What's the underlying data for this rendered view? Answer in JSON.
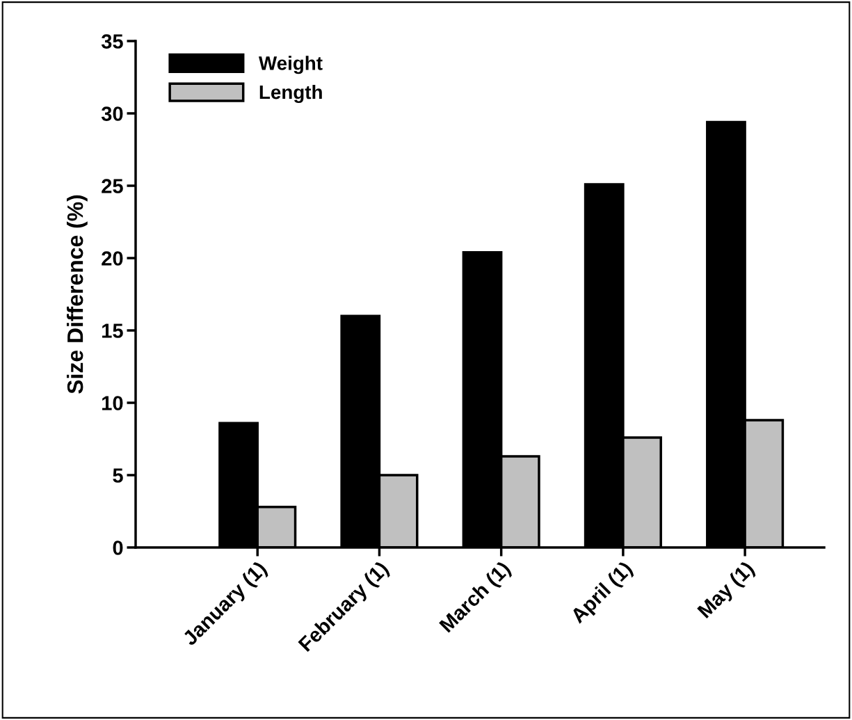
{
  "chart_data": {
    "type": "bar",
    "ylabel": "Size Difference (%)",
    "categories": [
      "January (1)",
      "February (1)",
      "March (1)",
      "April (1)",
      "May (1)"
    ],
    "series": [
      {
        "name": "Weight",
        "color": "#000000",
        "values": [
          8.6,
          16.0,
          20.4,
          25.1,
          29.4
        ]
      },
      {
        "name": "Length",
        "color": "#c0c0c0",
        "values": [
          2.8,
          5.0,
          6.3,
          7.6,
          8.8
        ]
      }
    ],
    "ylim": [
      0,
      35
    ],
    "yticks": [
      0,
      5,
      10,
      15,
      20,
      25,
      30,
      35
    ],
    "grid": false,
    "legend": "top left"
  }
}
